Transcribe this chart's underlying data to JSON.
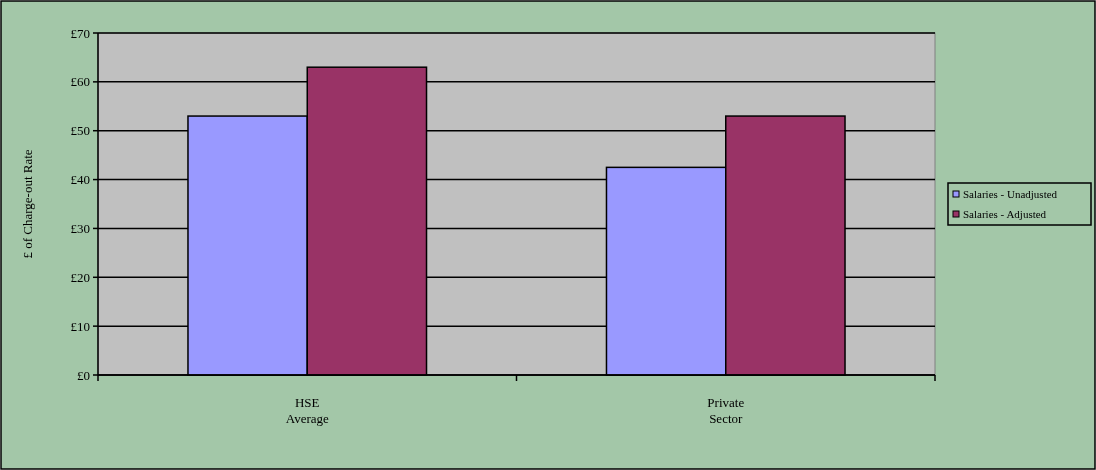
{
  "chart_data": {
    "type": "bar",
    "ylabel": "£ of Charge-out Rate",
    "categories": [
      "HSE Average",
      "Private Sector"
    ],
    "series": [
      {
        "name": "Salaries - Unadjusted",
        "color": "#9999ff",
        "values": [
          53,
          42.5
        ]
      },
      {
        "name": "Salaries - Adjusted",
        "color": "#993366",
        "values": [
          63,
          53
        ]
      }
    ],
    "ylim": [
      0,
      70
    ],
    "yticks": [
      {
        "value": 0,
        "label": "£0"
      },
      {
        "value": 10,
        "label": "£10"
      },
      {
        "value": 20,
        "label": "£20"
      },
      {
        "value": 30,
        "label": "£30"
      },
      {
        "value": 40,
        "label": "£40"
      },
      {
        "value": 50,
        "label": "£50"
      },
      {
        "value": 60,
        "label": "£60"
      },
      {
        "value": 70,
        "label": "£70"
      }
    ],
    "grid": "y",
    "legend": "right"
  }
}
